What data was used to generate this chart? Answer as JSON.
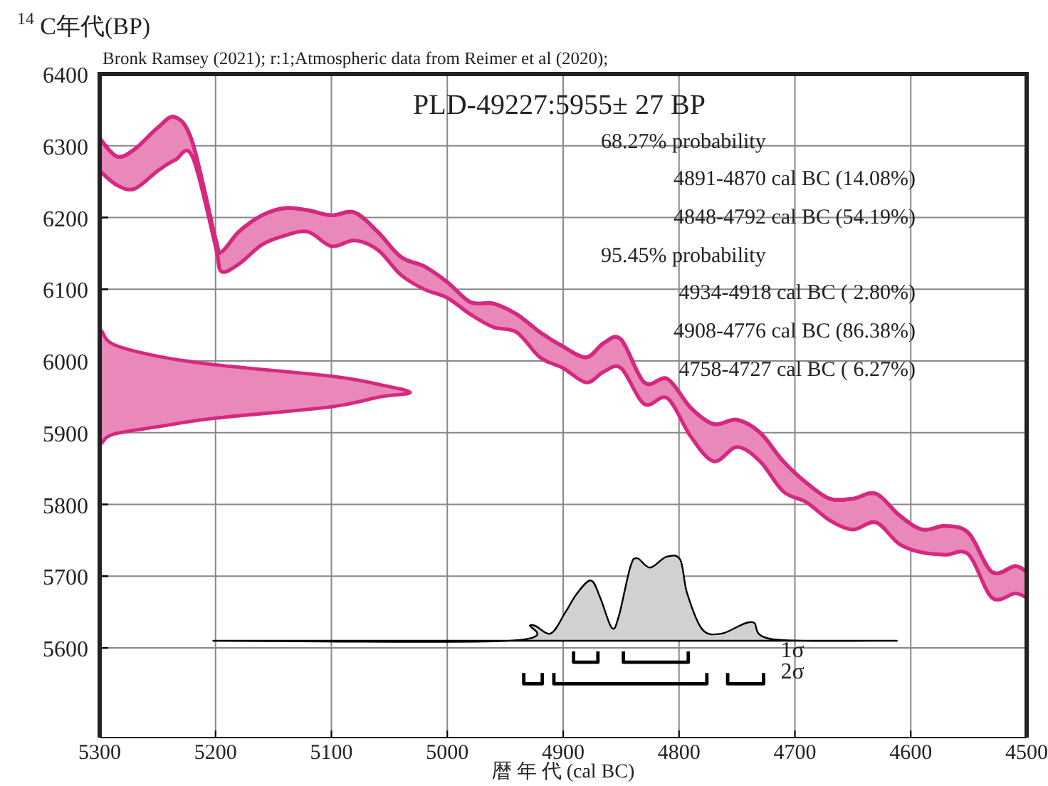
{
  "chart_data": {
    "type": "line",
    "subtitle": "Bronk Ramsey (2021); r:1;Atmospheric data from Reimer et al (2020);",
    "xlabel": "暦 年 代 (cal BC)",
    "ylabel": "$^{14}$C年代(BP)",
    "annotations": [
      "PLD-49227:5955± 27 BP",
      "68.27% probability",
      "4891-4870 cal BC (14.08%)",
      "4848-4792 cal BC (54.19%)",
      "95.45% probability",
      "4934-4918 cal BC ( 2.80%)",
      "4908-4776 cal BC (86.38%)",
      "4758-4727 cal BC ( 6.27%)"
    ],
    "xlim": [
      5300,
      4500
    ],
    "xticks": [
      5300,
      5200,
      5100,
      5000,
      4900,
      4800,
      4700,
      4600,
      4500
    ],
    "ylim": [
      5475,
      6400
    ],
    "yticks": [
      5600,
      5700,
      5800,
      5900,
      6000,
      6100,
      6200,
      6300,
      6400
    ],
    "grid": true,
    "series": [
      {
        "type": "line",
        "color": "#d6287f",
        "x": [
          5300,
          5285,
          5270,
          5250,
          5235,
          5220,
          5200,
          5195,
          5180,
          5160,
          5140,
          5120,
          5100,
          5080,
          5060,
          5040,
          5020,
          5000,
          4980,
          4960,
          4940,
          4920,
          4900,
          4880,
          4865,
          4850,
          4830,
          4810,
          4790,
          4770,
          4750,
          4730,
          4710,
          4690,
          4670,
          4650,
          4630,
          4610,
          4590,
          4570,
          4550,
          4530,
          4510,
          4500
        ],
        "values": [
          6310,
          6285,
          6295,
          6325,
          6340,
          6305,
          6170,
          6152,
          6180,
          6203,
          6213,
          6210,
          6203,
          6207,
          6180,
          6145,
          6132,
          6110,
          6082,
          6080,
          6065,
          6040,
          6020,
          6005,
          6025,
          6030,
          5970,
          5975,
          5935,
          5912,
          5918,
          5900,
          5860,
          5830,
          5808,
          5808,
          5815,
          5785,
          5765,
          5770,
          5760,
          5706,
          5714,
          5706
        ],
        "upper": [
          6310,
          6285,
          6295,
          6325,
          6340,
          6305,
          6170,
          6152,
          6180,
          6203,
          6213,
          6210,
          6203,
          6207,
          6180,
          6145,
          6132,
          6110,
          6082,
          6080,
          6065,
          6040,
          6020,
          6005,
          6025,
          6030,
          5970,
          5975,
          5935,
          5912,
          5918,
          5900,
          5860,
          5830,
          5808,
          5808,
          5815,
          5785,
          5765,
          5770,
          5760,
          5706,
          5714,
          5706
        ],
        "lower": [
          6265,
          6245,
          6240,
          6265,
          6280,
          6285,
          6160,
          6125,
          6135,
          6162,
          6175,
          6180,
          6160,
          6168,
          6155,
          6120,
          6100,
          6088,
          6065,
          6047,
          6040,
          6005,
          5990,
          5970,
          5985,
          5990,
          5940,
          5948,
          5895,
          5860,
          5880,
          5860,
          5818,
          5803,
          5778,
          5765,
          5775,
          5745,
          5733,
          5730,
          5730,
          5670,
          5676,
          5670
        ]
      },
      {
        "type": "area",
        "color": "#d6287f",
        "x": [
          5300,
          5300,
          5298,
          5288,
          5251,
          5202,
          5101,
          5058,
          5032,
          5058,
          5101,
          5202,
          5251,
          5288,
          5298,
          5300,
          5300
        ],
        "values": [
          5837,
          5880,
          5886,
          5898,
          5908,
          5920,
          5936,
          5950,
          5956,
          5967,
          5979,
          5995,
          6007,
          6023,
          6041,
          6050,
          6106
        ]
      },
      {
        "type": "area",
        "color": "#000000",
        "x": [
          5202,
          4947,
          4928,
          4911,
          4898,
          4888,
          4876,
          4868,
          4858,
          4852,
          4842,
          4836,
          4825,
          4811,
          4799,
          4793,
          4780,
          4763,
          4737,
          4719,
          4612
        ],
        "values": [
          5610,
          5610,
          5632,
          5620,
          5650,
          5676,
          5694,
          5670,
          5628,
          5644,
          5713,
          5725,
          5712,
          5727,
          5723,
          5676,
          5626,
          5620,
          5636,
          5612,
          5610
        ]
      },
      {
        "name": "1σ",
        "color": "#000000",
        "x": [
          4891,
          4891,
          4870,
          4870,
          null,
          4848,
          4848,
          4792,
          4792
        ],
        "values": [
          5595,
          5580,
          5580,
          5595,
          null,
          5595,
          5580,
          5580,
          5595
        ]
      },
      {
        "name": "2σ",
        "color": "#000000",
        "x": [
          4934,
          4934,
          4918,
          4918,
          null,
          4908,
          4908,
          4776,
          4776,
          null,
          4758,
          4758,
          4727,
          4727
        ],
        "values": [
          5565,
          5550,
          5550,
          5565,
          null,
          5565,
          5550,
          5550,
          5565,
          null,
          5565,
          5550,
          5550,
          5565
        ]
      }
    ]
  }
}
